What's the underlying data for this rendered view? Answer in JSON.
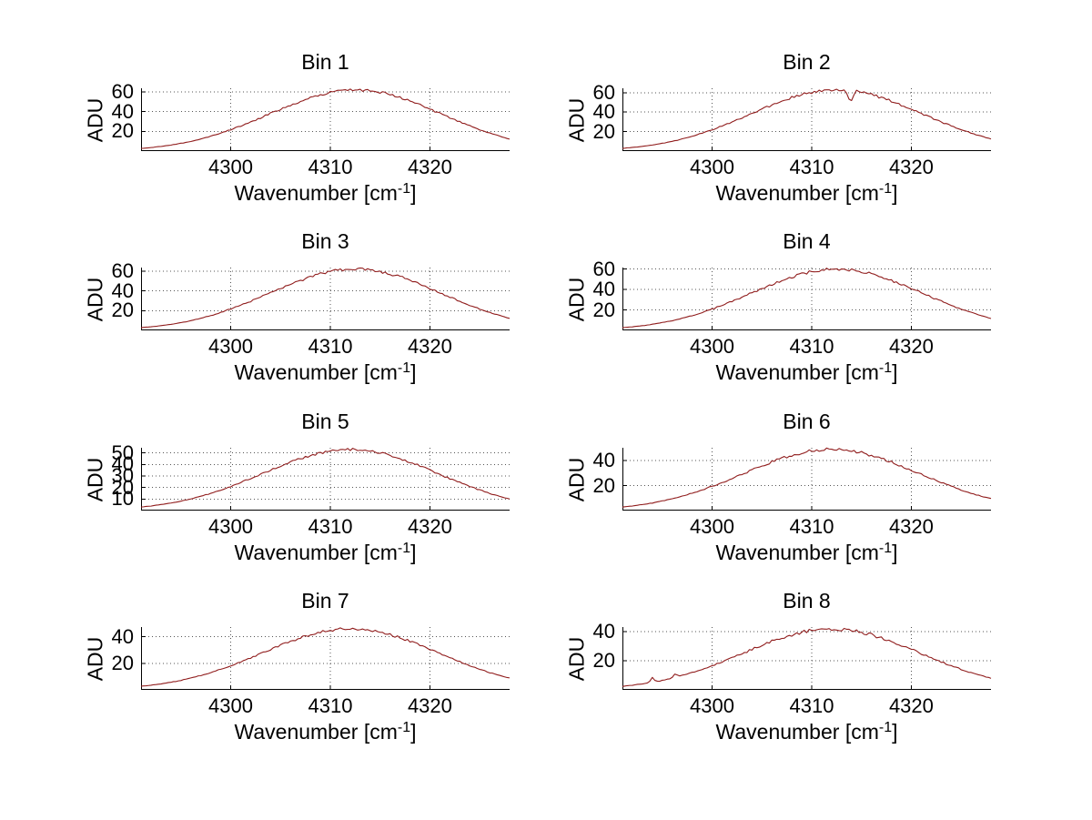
{
  "figure": {
    "background": "#ffffff",
    "line_color": "#901c1c",
    "grid_color": "#555555",
    "axis_color": "#000000"
  },
  "labels": {
    "ylabel": "ADU",
    "xlabel_base": "Wavenumber [cm",
    "xlabel_sup": "-1",
    "xlabel_close": "]"
  },
  "axis": {
    "x_min": 4291,
    "x_max": 4328,
    "x_ticks": [
      4300,
      4310,
      4320
    ]
  },
  "chart_data": [
    {
      "type": "line",
      "title": "Bin 1",
      "xlabel": "Wavenumber [cm-1]",
      "ylabel": "ADU",
      "x_start": 4291,
      "x_step": 1,
      "ymax": 63.5,
      "yticks": [
        20,
        40,
        60
      ],
      "seed": 11,
      "noise_frac": 0.024,
      "spikes": [],
      "values": [
        2.7,
        3.6,
        4.7,
        6.1,
        7.8,
        9.8,
        12.2,
        15.0,
        18.1,
        21.6,
        25.4,
        29.4,
        33.7,
        38.1,
        42.4,
        46.6,
        50.5,
        54.1,
        57.1,
        59.4,
        61.1,
        61.9,
        61.9,
        61.1,
        59.4,
        57.1,
        54.1,
        50.5,
        46.6,
        42.4,
        38.1,
        33.7,
        29.4,
        25.4,
        21.6,
        18.1,
        15.0,
        12.2
      ]
    },
    {
      "type": "line",
      "title": "Bin 2",
      "xlabel": "Wavenumber [cm-1]",
      "ylabel": "ADU",
      "x_start": 4291,
      "x_step": 1,
      "ymax": 64.5,
      "yticks": [
        20,
        40,
        60
      ],
      "seed": 22,
      "noise_frac": 0.024,
      "spikes": [
        {
          "x": 4313.9,
          "dy": -14,
          "w": 0.45
        }
      ],
      "values": [
        2.8,
        3.7,
        4.8,
        6.2,
        8.0,
        10.0,
        12.4,
        15.2,
        18.4,
        21.9,
        25.8,
        29.9,
        34.2,
        38.7,
        43.1,
        47.3,
        51.4,
        54.9,
        58.0,
        60.4,
        62.0,
        62.9,
        62.9,
        62.0,
        60.4,
        58.0,
        54.9,
        51.4,
        47.3,
        43.1,
        38.7,
        34.2,
        29.9,
        25.8,
        21.9,
        18.4,
        15.2,
        12.4
      ]
    },
    {
      "type": "line",
      "title": "Bin 3",
      "xlabel": "Wavenumber [cm-1]",
      "ylabel": "ADU",
      "x_start": 4291,
      "x_step": 1,
      "ymax": 63.5,
      "yticks": [
        20,
        40,
        60
      ],
      "seed": 33,
      "noise_frac": 0.024,
      "spikes": [],
      "values": [
        2.7,
        3.6,
        4.7,
        6.1,
        7.8,
        9.8,
        12.2,
        15.0,
        18.1,
        21.6,
        25.4,
        29.4,
        33.7,
        38.1,
        42.4,
        46.6,
        50.5,
        54.1,
        57.1,
        59.4,
        61.1,
        61.9,
        61.9,
        61.1,
        59.4,
        57.1,
        54.1,
        50.5,
        46.6,
        42.4,
        38.1,
        33.7,
        29.4,
        25.4,
        21.6,
        18.1,
        15.0,
        12.2
      ]
    },
    {
      "type": "line",
      "title": "Bin 4",
      "xlabel": "Wavenumber [cm-1]",
      "ylabel": "ADU",
      "x_start": 4291,
      "x_step": 1,
      "ymax": 61.5,
      "yticks": [
        20,
        40,
        60
      ],
      "seed": 44,
      "noise_frac": 0.024,
      "spikes": [],
      "values": [
        2.6,
        3.5,
        4.6,
        5.9,
        7.6,
        9.5,
        11.8,
        14.5,
        17.5,
        20.9,
        24.5,
        28.5,
        32.6,
        36.8,
        41.0,
        45.1,
        48.9,
        52.3,
        55.2,
        57.5,
        59.1,
        59.9,
        59.9,
        59.1,
        57.5,
        55.2,
        52.3,
        48.9,
        45.1,
        41.0,
        36.8,
        32.6,
        28.5,
        24.5,
        20.9,
        17.5,
        14.5,
        11.8
      ]
    },
    {
      "type": "line",
      "title": "Bin 5",
      "xlabel": "Wavenumber [cm-1]",
      "ylabel": "ADU",
      "x_start": 4291,
      "x_step": 1,
      "ymax": 54.5,
      "yticks": [
        10,
        20,
        30,
        40,
        50
      ],
      "seed": 55,
      "noise_frac": 0.022,
      "spikes": [],
      "values": [
        3.1,
        4.0,
        5.2,
        6.5,
        8.2,
        10.1,
        12.4,
        14.9,
        17.8,
        20.9,
        24.3,
        27.8,
        31.4,
        35.1,
        38.6,
        42.0,
        45.1,
        47.8,
        50.0,
        51.6,
        52.7,
        53.0,
        52.7,
        51.6,
        50.0,
        47.8,
        45.1,
        42.0,
        38.6,
        35.1,
        31.4,
        27.8,
        24.3,
        20.9,
        17.8,
        14.9,
        12.4,
        10.1
      ]
    },
    {
      "type": "line",
      "title": "Bin 6",
      "xlabel": "Wavenumber [cm-1]",
      "ylabel": "ADU",
      "x_start": 4291,
      "x_step": 1,
      "ymax": 50.2,
      "yticks": [
        20,
        40
      ],
      "seed": 66,
      "noise_frac": 0.025,
      "spikes": [],
      "values": [
        2.8,
        3.7,
        4.8,
        6.0,
        7.6,
        9.4,
        11.5,
        13.8,
        16.5,
        19.3,
        22.4,
        25.7,
        29.0,
        32.4,
        35.7,
        38.8,
        41.7,
        44.2,
        46.2,
        47.8,
        48.7,
        49.0,
        48.7,
        47.8,
        46.2,
        44.2,
        41.7,
        38.8,
        35.7,
        32.4,
        29.0,
        25.7,
        22.4,
        19.3,
        16.5,
        13.8,
        11.5,
        9.4
      ]
    },
    {
      "type": "line",
      "title": "Bin 7",
      "xlabel": "Wavenumber [cm-1]",
      "ylabel": "ADU",
      "x_start": 4291,
      "x_step": 1,
      "ymax": 47.2,
      "yticks": [
        20,
        40
      ],
      "seed": 77,
      "noise_frac": 0.022,
      "spikes": [],
      "values": [
        2.7,
        3.5,
        4.5,
        5.7,
        7.1,
        8.8,
        10.8,
        13.0,
        15.5,
        18.2,
        21.1,
        24.1,
        27.3,
        30.4,
        33.5,
        36.5,
        39.1,
        41.5,
        43.4,
        44.8,
        45.7,
        46.0,
        45.7,
        44.8,
        43.4,
        41.5,
        39.1,
        36.5,
        33.5,
        30.4,
        27.3,
        24.1,
        21.1,
        18.2,
        15.5,
        13.0,
        10.8,
        8.8
      ]
    },
    {
      "type": "line",
      "title": "Bin 8",
      "xlabel": "Wavenumber [cm-1]",
      "ylabel": "ADU",
      "x_start": 4291,
      "x_step": 1,
      "ymax": 43.2,
      "yticks": [
        20,
        40
      ],
      "seed": 88,
      "noise_frac": 0.028,
      "spikes": [
        {
          "x": 4294.0,
          "dy": 3.5,
          "w": 0.35
        },
        {
          "x": 4296.3,
          "dy": 3.0,
          "w": 0.35
        }
      ],
      "values": [
        2.4,
        3.2,
        4.1,
        5.2,
        6.5,
        8.0,
        9.8,
        11.8,
        14.1,
        16.6,
        19.2,
        22.0,
        24.9,
        27.8,
        30.6,
        33.3,
        35.7,
        37.9,
        39.6,
        40.9,
        41.7,
        42.0,
        41.7,
        40.9,
        39.6,
        37.9,
        35.7,
        33.3,
        30.6,
        27.8,
        24.9,
        22.0,
        19.2,
        16.6,
        14.1,
        11.8,
        9.8,
        8.0
      ]
    }
  ]
}
